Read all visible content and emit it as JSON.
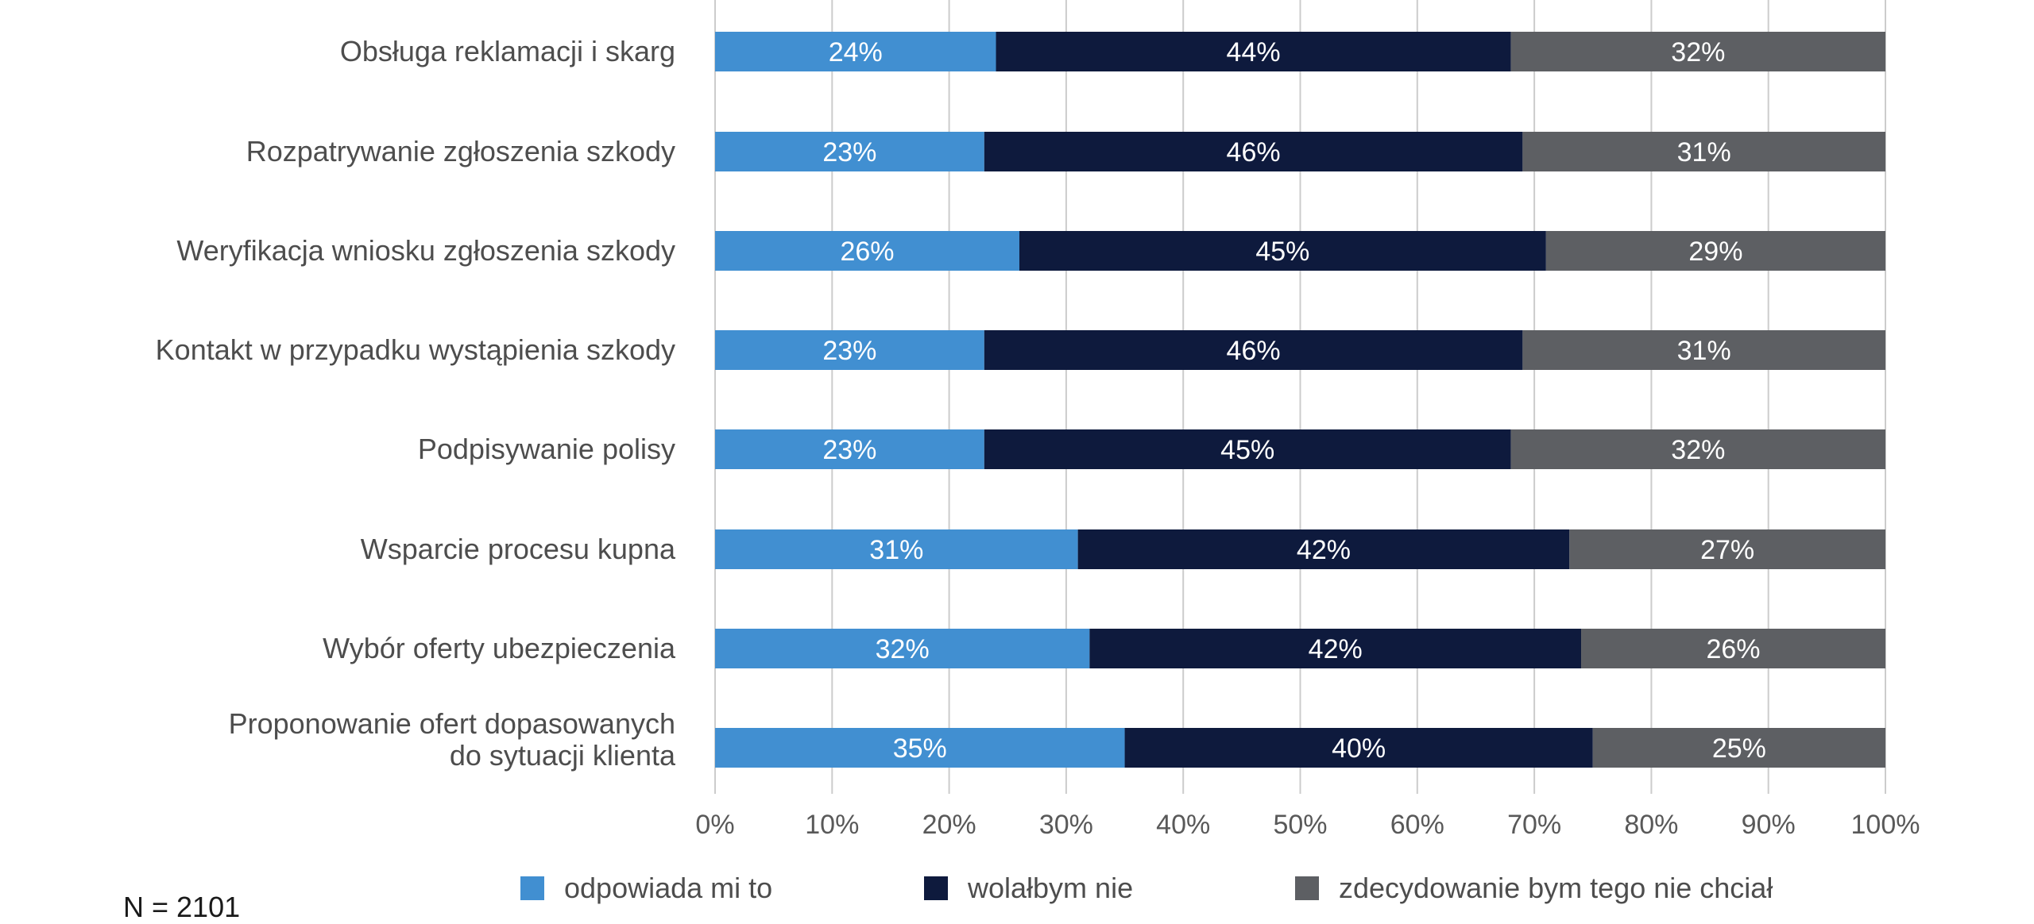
{
  "chart_data": {
    "type": "bar",
    "orientation": "horizontal",
    "stacked": true,
    "categories": [
      [
        "Obsługa reklamacji i skarg"
      ],
      [
        "Rozpatrywanie zgłoszenia szkody"
      ],
      [
        "Weryfikacja wniosku zgłoszenia szkody"
      ],
      [
        "Kontakt w przypadku wystąpienia szkody"
      ],
      [
        "Podpisywanie polisy"
      ],
      [
        "Wsparcie procesu kupna"
      ],
      [
        "Wybór oferty ubezpieczenia"
      ],
      [
        "Proponowanie ofert dopasowanych",
        "do sytuacji klienta"
      ]
    ],
    "series": [
      {
        "name": "odpowiada mi to",
        "color": "#418fd1",
        "values": [
          24,
          23,
          26,
          23,
          23,
          31,
          32,
          35
        ],
        "labels": [
          "24%",
          "23%",
          "26%",
          "23%",
          "23%",
          "31%",
          "32%",
          "35%"
        ]
      },
      {
        "name": "wolałbym nie",
        "color": "#0e1a3d",
        "values": [
          44,
          46,
          45,
          46,
          45,
          42,
          42,
          40
        ],
        "labels": [
          "44%",
          "46%",
          "45%",
          "46%",
          "45%",
          "42%",
          "42%",
          "40%"
        ]
      },
      {
        "name": "zdecydowanie bym tego nie chciał",
        "color": "#5d5f63",
        "values": [
          32,
          31,
          29,
          31,
          32,
          27,
          26,
          25
        ],
        "labels": [
          "32%",
          "31%",
          "29%",
          "31%",
          "32%",
          "27%",
          "26%",
          "25%"
        ]
      }
    ],
    "xlim": [
      0,
      100
    ],
    "xticks": [
      "0%",
      "10%",
      "20%",
      "30%",
      "40%",
      "50%",
      "60%",
      "70%",
      "80%",
      "90%",
      "100%"
    ],
    "grid": true,
    "legend_position": "bottom",
    "title": "",
    "xlabel": "",
    "ylabel": ""
  },
  "note": "N = 2101",
  "colors": {
    "gridline": "#cccccc",
    "text": "#4d4d4d"
  }
}
